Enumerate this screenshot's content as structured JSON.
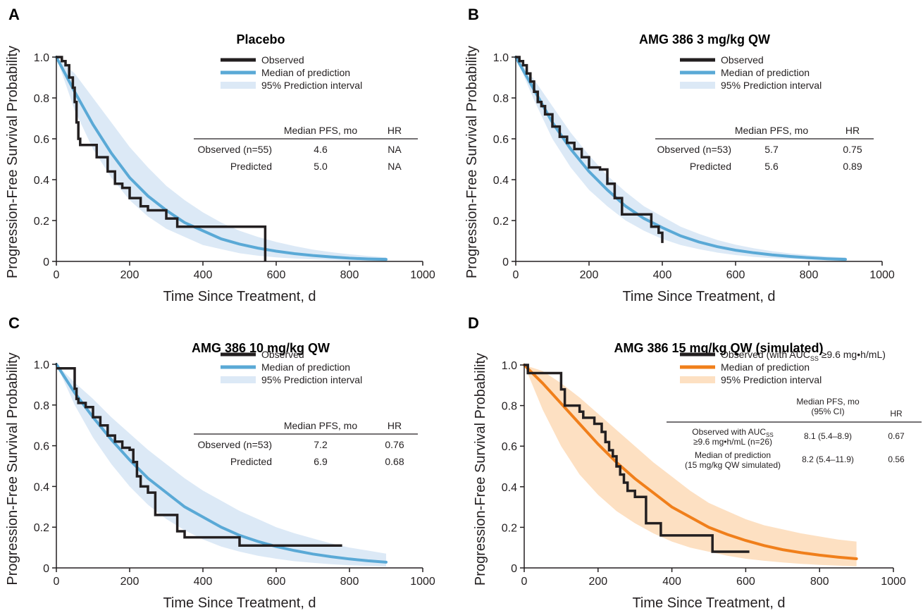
{
  "colors": {
    "observed": "#231f20",
    "blue_median": "#5aa9d6",
    "blue_band": "#dce9f6",
    "orange_median": "#f07f1b",
    "orange_band": "#fde0c2"
  },
  "chart_data": [
    {
      "panel": "A",
      "type": "line",
      "title": "Placebo",
      "xlabel": "Time Since Treatment, d",
      "ylabel": "Progression-Free Survival Probability",
      "xlim": [
        0,
        1000
      ],
      "ylim": [
        0,
        1.0
      ],
      "xticks": [
        "0",
        "200",
        "400",
        "600",
        "800",
        "1000"
      ],
      "yticks": [
        "0",
        "0.2",
        "0.4",
        "0.6",
        "0.8",
        "1.0"
      ],
      "legend": [
        "Observed",
        "Median of prediction",
        "95% Prediction interval"
      ],
      "theme": "blue",
      "table": {
        "headers": [
          "Median PFS, mo",
          "HR"
        ],
        "rows": [
          {
            "label": "Observed (n=55)",
            "median": "4.6",
            "hr": "NA"
          },
          {
            "label": "Predicted",
            "median": "5.0",
            "hr": "NA"
          }
        ]
      },
      "series": [
        {
          "name": "Observed",
          "kind": "step",
          "x": [
            0,
            15,
            25,
            35,
            45,
            50,
            55,
            60,
            65,
            70,
            80,
            90,
            110,
            140,
            160,
            180,
            200,
            230,
            250,
            300,
            330,
            380,
            570,
            570
          ],
          "y": [
            1.0,
            0.98,
            0.96,
            0.9,
            0.85,
            0.78,
            0.68,
            0.6,
            0.57,
            0.57,
            0.57,
            0.57,
            0.51,
            0.44,
            0.38,
            0.36,
            0.31,
            0.27,
            0.25,
            0.21,
            0.17,
            0.17,
            0.17,
            0.0
          ]
        },
        {
          "name": "Median of prediction",
          "kind": "curve",
          "x": [
            0,
            50,
            100,
            150,
            200,
            250,
            300,
            350,
            400,
            450,
            500,
            550,
            600,
            650,
            700,
            750,
            800,
            850,
            900
          ],
          "y": [
            1.0,
            0.83,
            0.67,
            0.53,
            0.41,
            0.32,
            0.25,
            0.19,
            0.15,
            0.11,
            0.085,
            0.065,
            0.05,
            0.038,
            0.029,
            0.022,
            0.016,
            0.012,
            0.01
          ]
        },
        {
          "name": "95% Prediction interval",
          "kind": "band",
          "x": [
            0,
            50,
            100,
            150,
            200,
            250,
            300,
            350,
            400,
            450,
            500,
            550,
            600,
            650,
            700,
            750,
            800,
            850,
            900
          ],
          "upper": [
            1.0,
            0.92,
            0.8,
            0.68,
            0.56,
            0.46,
            0.37,
            0.3,
            0.24,
            0.19,
            0.15,
            0.12,
            0.095,
            0.075,
            0.058,
            0.045,
            0.035,
            0.027,
            0.02
          ],
          "lower": [
            1.0,
            0.74,
            0.55,
            0.41,
            0.3,
            0.22,
            0.16,
            0.12,
            0.08,
            0.06,
            0.04,
            0.028,
            0.02,
            0.014,
            0.01,
            0.007,
            0.005,
            0.003,
            0.002
          ]
        }
      ]
    },
    {
      "panel": "B",
      "type": "line",
      "title": "AMG 386 3 mg/kg QW",
      "xlabel": "Time Since Treatment, d",
      "ylabel": "Progression-Free Survival Probability",
      "xlim": [
        0,
        1000
      ],
      "ylim": [
        0,
        1.0
      ],
      "xticks": [
        "0",
        "200",
        "400",
        "600",
        "800",
        "1000"
      ],
      "yticks": [
        "0",
        "0.2",
        "0.4",
        "0.6",
        "0.8",
        "1.0"
      ],
      "legend": [
        "Observed",
        "Median of prediction",
        "95% Prediction interval"
      ],
      "theme": "blue",
      "table": {
        "headers": [
          "Median PFS, mo",
          "HR"
        ],
        "rows": [
          {
            "label": "Observed (n=53)",
            "median": "5.7",
            "hr": "0.75"
          },
          {
            "label": "Predicted",
            "median": "5.6",
            "hr": "0.89"
          }
        ]
      },
      "series": [
        {
          "name": "Observed",
          "kind": "step",
          "x": [
            0,
            10,
            20,
            30,
            40,
            50,
            60,
            70,
            80,
            100,
            120,
            140,
            160,
            180,
            200,
            230,
            250,
            270,
            290,
            340,
            370,
            390,
            400,
            400
          ],
          "y": [
            1.0,
            0.98,
            0.96,
            0.92,
            0.88,
            0.83,
            0.78,
            0.76,
            0.72,
            0.66,
            0.61,
            0.58,
            0.55,
            0.51,
            0.46,
            0.45,
            0.38,
            0.31,
            0.23,
            0.23,
            0.17,
            0.14,
            0.12,
            0.09
          ]
        },
        {
          "name": "Median of prediction",
          "kind": "curve",
          "x": [
            0,
            50,
            100,
            150,
            200,
            250,
            300,
            350,
            400,
            450,
            500,
            550,
            600,
            650,
            700,
            750,
            800,
            850,
            900
          ],
          "y": [
            1.0,
            0.84,
            0.68,
            0.55,
            0.44,
            0.35,
            0.27,
            0.21,
            0.165,
            0.125,
            0.095,
            0.072,
            0.055,
            0.042,
            0.032,
            0.024,
            0.018,
            0.013,
            0.01
          ]
        },
        {
          "name": "95% Prediction interval",
          "kind": "band",
          "x": [
            0,
            50,
            100,
            150,
            200,
            250,
            300,
            350,
            400,
            450,
            500,
            550,
            600,
            650,
            700,
            750,
            800,
            850,
            900
          ],
          "upper": [
            1.0,
            0.89,
            0.76,
            0.63,
            0.52,
            0.42,
            0.34,
            0.27,
            0.22,
            0.17,
            0.135,
            0.105,
            0.082,
            0.064,
            0.05,
            0.039,
            0.031,
            0.024,
            0.02
          ],
          "lower": [
            1.0,
            0.79,
            0.6,
            0.46,
            0.35,
            0.27,
            0.2,
            0.15,
            0.11,
            0.08,
            0.06,
            0.043,
            0.031,
            0.022,
            0.016,
            0.011,
            0.008,
            0.005,
            0.003
          ]
        }
      ]
    },
    {
      "panel": "C",
      "type": "line",
      "title": "AMG 386 10 mg/kg QW",
      "xlabel": "Time Since Treatment, d",
      "ylabel": "Progression-Free Survival Probability",
      "xlim": [
        0,
        1000
      ],
      "ylim": [
        0,
        1.0
      ],
      "xticks": [
        "0",
        "200",
        "400",
        "600",
        "800",
        "1000"
      ],
      "yticks": [
        "0",
        "0.2",
        "0.4",
        "0.6",
        "0.8",
        "1.0"
      ],
      "legend": [
        "Observed",
        "Median of prediction",
        "95% Prediction interval"
      ],
      "theme": "blue",
      "table": {
        "headers": [
          "Median PFS, mo",
          "HR"
        ],
        "rows": [
          {
            "label": "Observed (n=53)",
            "median": "7.2",
            "hr": "0.76"
          },
          {
            "label": "Predicted",
            "median": "6.9",
            "hr": "0.68"
          }
        ]
      },
      "series": [
        {
          "name": "Observed",
          "kind": "step",
          "x": [
            0,
            45,
            50,
            55,
            60,
            80,
            100,
            120,
            140,
            160,
            180,
            200,
            210,
            220,
            230,
            250,
            270,
            330,
            350,
            400,
            500,
            600,
            700,
            780
          ],
          "y": [
            0.98,
            0.98,
            0.88,
            0.83,
            0.81,
            0.79,
            0.74,
            0.7,
            0.65,
            0.62,
            0.59,
            0.58,
            0.52,
            0.45,
            0.4,
            0.37,
            0.26,
            0.18,
            0.15,
            0.15,
            0.11,
            0.11,
            0.11,
            0.11
          ]
        },
        {
          "name": "Median of prediction",
          "kind": "curve",
          "x": [
            0,
            50,
            100,
            150,
            200,
            250,
            300,
            350,
            400,
            450,
            500,
            550,
            600,
            650,
            700,
            750,
            800,
            850,
            900
          ],
          "y": [
            1.0,
            0.86,
            0.74,
            0.63,
            0.53,
            0.44,
            0.37,
            0.3,
            0.25,
            0.2,
            0.16,
            0.13,
            0.105,
            0.085,
            0.068,
            0.055,
            0.044,
            0.035,
            0.028
          ]
        },
        {
          "name": "95% Prediction interval",
          "kind": "band",
          "x": [
            0,
            50,
            100,
            150,
            200,
            250,
            300,
            350,
            400,
            450,
            500,
            550,
            600,
            650,
            700,
            750,
            800,
            850,
            900
          ],
          "upper": [
            1.0,
            0.91,
            0.83,
            0.74,
            0.66,
            0.58,
            0.51,
            0.44,
            0.38,
            0.33,
            0.28,
            0.24,
            0.2,
            0.17,
            0.145,
            0.12,
            0.1,
            0.085,
            0.07
          ]
        },
        {
          "name": "95% Prediction interval lower",
          "kind": "band-lower",
          "x": [
            0,
            50,
            100,
            150,
            200,
            250,
            300,
            350,
            400,
            450,
            500,
            550,
            600,
            650,
            700,
            750,
            800,
            850,
            900
          ],
          "lower": [
            1.0,
            0.8,
            0.64,
            0.51,
            0.4,
            0.31,
            0.24,
            0.185,
            0.14,
            0.105,
            0.08,
            0.06,
            0.045,
            0.033,
            0.025,
            0.018,
            0.013,
            0.01,
            0.007
          ]
        }
      ]
    },
    {
      "panel": "D",
      "type": "line",
      "title": "AMG 386 15 mg/kg QW (simulated)",
      "xlabel": "Time Since Treatment, d",
      "ylabel": "Progression-Free Survival Probability",
      "xlim": [
        0,
        1000
      ],
      "ylim": [
        0,
        1.0
      ],
      "xticks": [
        "0",
        "200",
        "400",
        "600",
        "800",
        "1000"
      ],
      "yticks": [
        "0",
        "0.2",
        "0.4",
        "0.6",
        "0.8",
        "1.0"
      ],
      "legend": [
        "Observed (with AUC",
        "SS",
        " ≥9.6 mg•h/mL)",
        "Median of prediction",
        "95% Prediction interval"
      ],
      "theme": "orange",
      "table": {
        "headers": [
          "Median PFS, mo",
          "(95% CI)",
          "HR"
        ],
        "rows": [
          {
            "label1a": "Observed with AUC",
            "label1sub": "SS",
            "label2": "≥9.6 mg•h/mL (n=26)",
            "median": "8.1 (5.4–8.9)",
            "hr": "0.67"
          },
          {
            "label1a": "Median of prediction",
            "label1sub": "",
            "label2": "(15 mg/kg QW simulated)",
            "median": "8.2 (5.4–11.9)",
            "hr": "0.56"
          }
        ]
      },
      "series": [
        {
          "name": "Observed",
          "kind": "step",
          "x": [
            0,
            10,
            50,
            100,
            110,
            150,
            160,
            190,
            210,
            220,
            230,
            240,
            250,
            260,
            270,
            280,
            300,
            330,
            370,
            400,
            500,
            510,
            610
          ],
          "y": [
            1.0,
            0.96,
            0.96,
            0.88,
            0.8,
            0.77,
            0.74,
            0.71,
            0.67,
            0.62,
            0.58,
            0.55,
            0.5,
            0.46,
            0.42,
            0.38,
            0.35,
            0.22,
            0.16,
            0.16,
            0.16,
            0.08,
            0.08
          ]
        },
        {
          "name": "Median of prediction",
          "kind": "curve",
          "x": [
            0,
            50,
            100,
            150,
            200,
            250,
            300,
            350,
            400,
            450,
            500,
            550,
            600,
            650,
            700,
            750,
            800,
            850,
            900
          ],
          "y": [
            1.0,
            0.91,
            0.81,
            0.71,
            0.61,
            0.52,
            0.44,
            0.37,
            0.3,
            0.25,
            0.2,
            0.165,
            0.135,
            0.11,
            0.09,
            0.075,
            0.063,
            0.053,
            0.045
          ]
        },
        {
          "name": "95% Prediction interval",
          "kind": "band",
          "x": [
            0,
            50,
            100,
            150,
            200,
            250,
            300,
            350,
            400,
            450,
            500,
            550,
            600,
            650,
            700,
            750,
            800,
            850,
            900
          ],
          "upper": [
            1.0,
            0.97,
            0.91,
            0.84,
            0.76,
            0.68,
            0.6,
            0.52,
            0.45,
            0.38,
            0.32,
            0.28,
            0.24,
            0.21,
            0.19,
            0.17,
            0.155,
            0.14,
            0.13
          ],
          "lower": [
            1.0,
            0.78,
            0.6,
            0.46,
            0.36,
            0.28,
            0.22,
            0.17,
            0.13,
            0.1,
            0.08,
            0.06,
            0.045,
            0.035,
            0.027,
            0.02,
            0.015,
            0.011,
            0.008
          ]
        }
      ]
    }
  ]
}
